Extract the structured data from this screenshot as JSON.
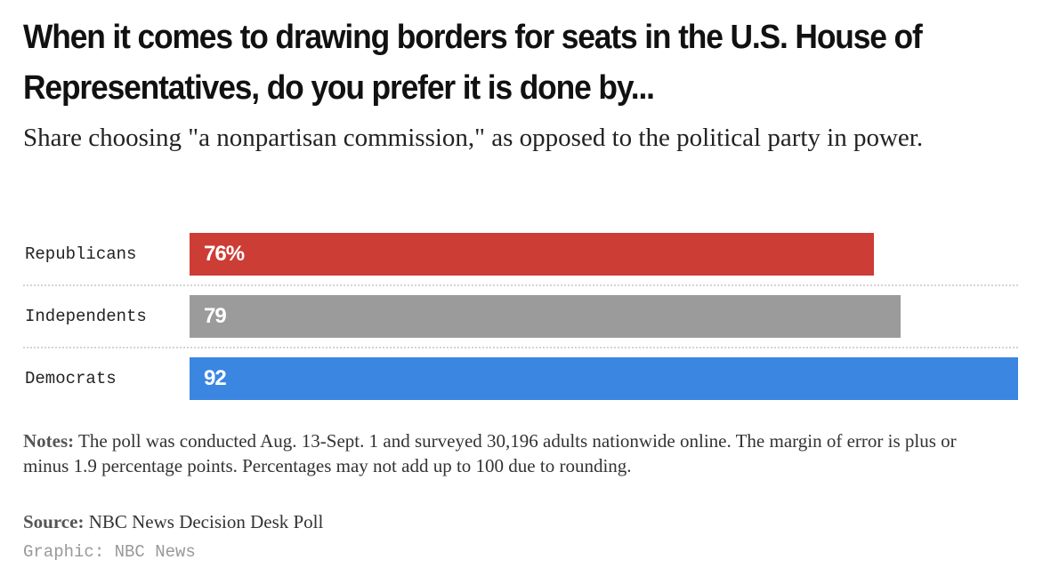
{
  "title": "When it comes to drawing borders for seats in the U.S. House of Representatives, do you prefer it is done by...",
  "subtitle": "Share choosing \"a nonpartisan commission,\" as opposed to the political party in power.",
  "chart_data": {
    "type": "bar",
    "orientation": "horizontal",
    "categories": [
      "Republicans",
      "Independents",
      "Democrats"
    ],
    "values": [
      76,
      79,
      92
    ],
    "data_labels": [
      "76%",
      "79",
      "92"
    ],
    "colors": [
      "#cc3d36",
      "#9b9b9b",
      "#3b86e0"
    ],
    "xlim": [
      0,
      92
    ],
    "grid": false,
    "xlabel": "",
    "ylabel": ""
  },
  "notes": {
    "label": "Notes:",
    "text": " The poll was conducted Aug. 13-Sept. 1 and surveyed 30,196 adults nationwide online. The margin of error is plus or minus 1.9 percentage points. Percentages may not add up to 100 due to rounding."
  },
  "source": {
    "label": "Source:",
    "text": " NBC News Decision Desk Poll"
  },
  "credit": "Graphic: NBC News"
}
